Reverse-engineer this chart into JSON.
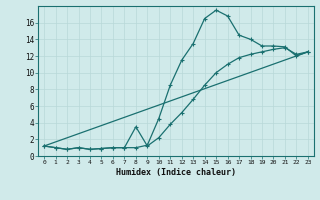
{
  "xlabel": "Humidex (Indice chaleur)",
  "xlim": [
    -0.5,
    23.5
  ],
  "ylim": [
    0,
    18
  ],
  "yticks": [
    0,
    2,
    4,
    6,
    8,
    10,
    12,
    14,
    16
  ],
  "xticks": [
    0,
    1,
    2,
    3,
    4,
    5,
    6,
    7,
    8,
    9,
    10,
    11,
    12,
    13,
    14,
    15,
    16,
    17,
    18,
    19,
    20,
    21,
    22,
    23
  ],
  "background_color": "#d0eaea",
  "grid_color": "#b8d8d8",
  "line_color": "#1a7070",
  "curve1_x": [
    0,
    1,
    2,
    3,
    4,
    5,
    6,
    7,
    8,
    9,
    10,
    11,
    12,
    13,
    14,
    15,
    16,
    17,
    18,
    19,
    20,
    21,
    22,
    23
  ],
  "curve1_y": [
    1.2,
    1.0,
    0.8,
    1.0,
    0.8,
    0.9,
    1.0,
    1.0,
    1.0,
    1.3,
    4.5,
    8.5,
    11.5,
    13.5,
    16.5,
    17.5,
    16.8,
    14.5,
    14.0,
    13.2,
    13.2,
    13.1,
    12.0,
    12.5
  ],
  "curve2_x": [
    0,
    1,
    2,
    3,
    4,
    5,
    6,
    7,
    8,
    9,
    10,
    11,
    12,
    13,
    14,
    15,
    16,
    17,
    18,
    19,
    20,
    21,
    22,
    23
  ],
  "curve2_y": [
    1.2,
    1.0,
    0.8,
    1.0,
    0.8,
    0.9,
    1.0,
    1.0,
    3.5,
    1.2,
    2.2,
    3.8,
    5.2,
    6.8,
    8.5,
    10.0,
    11.0,
    11.8,
    12.2,
    12.5,
    12.8,
    13.0,
    12.2,
    12.5
  ],
  "curve3_x": [
    0,
    23
  ],
  "curve3_y": [
    1.2,
    12.5
  ]
}
